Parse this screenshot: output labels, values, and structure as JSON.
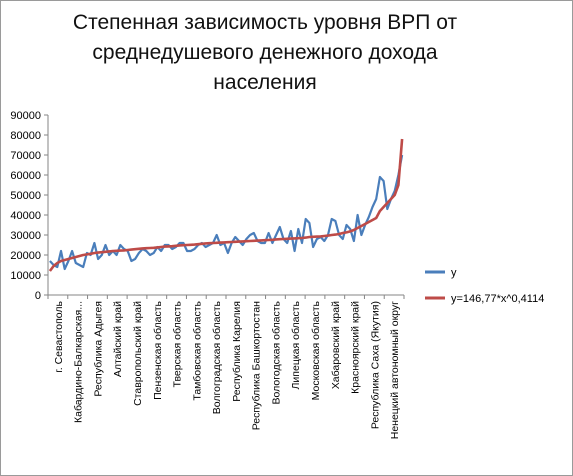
{
  "chart_data": {
    "type": "line",
    "title": "Степенная зависимость уровня ВРП от среднедушевого денежного дохода населения",
    "xlabel": "",
    "ylabel": "",
    "ylim": [
      0,
      90000
    ],
    "yticks": [
      0,
      10000,
      20000,
      30000,
      40000,
      50000,
      60000,
      70000,
      80000,
      90000
    ],
    "grid": false,
    "legend_position": "right",
    "category_labels": [
      "г. Севастополь",
      "Кабардино-Балкарская...",
      "Республика Адыгея",
      "Алтайский край",
      "Ставропольский край",
      "Пензенская область",
      "Тверская область",
      "Тамбовская область",
      "Волгоградская область",
      "Республика Карелия",
      "Республика Башкортостан",
      "Вологодская область",
      "Липецкая область",
      "Московская область",
      "Хабаровский край",
      "Красноярский край",
      "Республика Саха (Якутия)",
      "Ненецкий автономный округ"
    ],
    "series": [
      {
        "name": "y",
        "color": "#4a7ebb",
        "values": [
          17000,
          15000,
          14000,
          22000,
          13000,
          17000,
          22000,
          16000,
          15000,
          14000,
          21000,
          20000,
          26000,
          18000,
          20000,
          25000,
          20000,
          22000,
          20000,
          25000,
          23000,
          22000,
          17000,
          18000,
          21000,
          23000,
          22000,
          20000,
          21000,
          24000,
          22000,
          25000,
          25000,
          23000,
          24000,
          26000,
          26000,
          22000,
          22000,
          23000,
          25000,
          26000,
          24000,
          25000,
          26000,
          30000,
          25000,
          26000,
          21000,
          26000,
          29000,
          27000,
          25000,
          28000,
          30000,
          31000,
          27000,
          26000,
          26000,
          31000,
          26000,
          30000,
          34000,
          28000,
          26000,
          32000,
          22000,
          33000,
          26000,
          38000,
          36000,
          24000,
          28000,
          29000,
          27000,
          30000,
          38000,
          37000,
          30000,
          28000,
          35000,
          33000,
          27000,
          40000,
          30000,
          35000,
          39000,
          44000,
          48000,
          59000,
          57000,
          43000,
          48000,
          52000,
          60000,
          70000
        ]
      },
      {
        "name": "y=146,77*x^0,4114",
        "color": "#be4b48",
        "values": [
          12000,
          14500,
          16000,
          17000,
          17500,
          18000,
          18500,
          19000,
          19500,
          20000,
          20300,
          20600,
          21000,
          21200,
          21400,
          21600,
          21800,
          22000,
          22100,
          22200,
          22300,
          22500,
          22700,
          22900,
          23100,
          23300,
          23400,
          23500,
          23600,
          23800,
          24000,
          24200,
          24300,
          24400,
          24600,
          24800,
          24900,
          25000,
          25100,
          25200,
          25400,
          25600,
          25800,
          25900,
          26000,
          26100,
          26200,
          26300,
          26400,
          26500,
          26600,
          26700,
          26800,
          26900,
          27000,
          27100,
          27200,
          27300,
          27400,
          27500,
          27600,
          27800,
          27900,
          28000,
          28100,
          28200,
          28300,
          28400,
          28500,
          28700,
          29000,
          29100,
          29200,
          29300,
          29500,
          29700,
          30000,
          30200,
          30500,
          31000,
          31300,
          31800,
          32500,
          33500,
          34500,
          35500,
          36500,
          37500,
          38500,
          42000,
          44000,
          46000,
          48000,
          50000,
          55000,
          78000
        ]
      }
    ]
  }
}
